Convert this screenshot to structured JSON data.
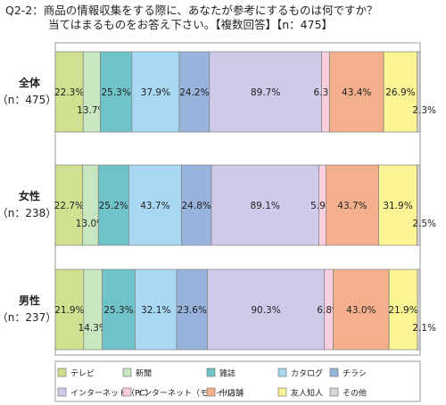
{
  "question": {
    "line1": "Q2-2：商品の情報収集をする際に、あなたが参考にするものは何ですか？",
    "line2": "当てはまるものをお答え下さい。【複数回答】【n：475】"
  },
  "colors": [
    "#cfe08f",
    "#c8e6c0",
    "#6fc3c9",
    "#a9d8f4",
    "#98b3dc",
    "#cfc9ea",
    "#f9cfe0",
    "#f4b08c",
    "#fbf495",
    "#d5d5d5"
  ],
  "chart_data": {
    "type": "bar",
    "stacked": true,
    "orientation": "horizontal",
    "categories": [
      "全体",
      "女性",
      "男性"
    ],
    "sample_labels": [
      "（n：475）",
      "（n：238）",
      "（n：237）"
    ],
    "series": [
      {
        "name": "テレビ",
        "values": [
          22.3,
          22.7,
          21.9
        ]
      },
      {
        "name": "新聞",
        "values": [
          13.7,
          13.0,
          14.3
        ]
      },
      {
        "name": "雑誌",
        "values": [
          25.3,
          25.2,
          25.3
        ]
      },
      {
        "name": "カタログ",
        "values": [
          37.9,
          43.7,
          32.1
        ]
      },
      {
        "name": "チラシ",
        "values": [
          24.2,
          24.8,
          23.6
        ]
      },
      {
        "name": "インターネット（PC）",
        "values": [
          89.7,
          89.1,
          90.3
        ]
      },
      {
        "name": "インターネット（モバイル）",
        "values": [
          6.3,
          5.9,
          6.8
        ]
      },
      {
        "name": "十店舗",
        "values": [
          43.4,
          43.7,
          43.0
        ]
      },
      {
        "name": "友人知人",
        "values": [
          26.9,
          31.9,
          21.9
        ]
      },
      {
        "name": "その他",
        "values": [
          2.3,
          2.5,
          2.1
        ]
      }
    ],
    "label_placement": [
      "center",
      "low",
      "center",
      "center",
      "center",
      "center",
      "center",
      "center",
      "center",
      "low"
    ],
    "legend_position": "bottom",
    "unit": "%"
  }
}
